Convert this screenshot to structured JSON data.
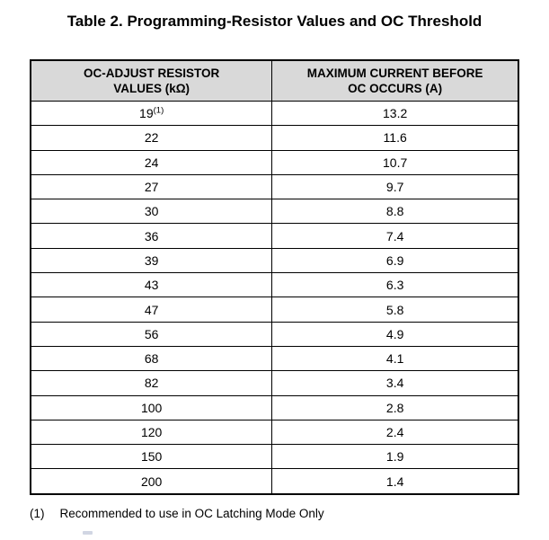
{
  "table": {
    "caption": "Table 2. Programming-Resistor Values and OC Threshold",
    "headers": {
      "col1": {
        "line1": "OC-ADJUST RESISTOR",
        "line2": "VALUES (kΩ)"
      },
      "col2": {
        "line1": "MAXIMUM CURRENT BEFORE",
        "line2": "OC OCCURS (A)"
      }
    },
    "rows": [
      {
        "resistor": "19",
        "sup": "(1)",
        "current": "13.2"
      },
      {
        "resistor": "22",
        "current": "11.6"
      },
      {
        "resistor": "24",
        "current": "10.7"
      },
      {
        "resistor": "27",
        "current": "9.7"
      },
      {
        "resistor": "30",
        "current": "8.8"
      },
      {
        "resistor": "36",
        "current": "7.4"
      },
      {
        "resistor": "39",
        "current": "6.9"
      },
      {
        "resistor": "43",
        "current": "6.3"
      },
      {
        "resistor": "47",
        "current": "5.8"
      },
      {
        "resistor": "56",
        "current": "4.9"
      },
      {
        "resistor": "68",
        "current": "4.1"
      },
      {
        "resistor": "82",
        "current": "3.4"
      },
      {
        "resistor": "100",
        "current": "2.8"
      },
      {
        "resistor": "120",
        "current": "2.4"
      },
      {
        "resistor": "150",
        "current": "1.9"
      },
      {
        "resistor": "200",
        "current": "1.4"
      }
    ]
  },
  "footnote": {
    "marker": "(1)",
    "text": "Recommended to use in OC Latching Mode Only"
  },
  "colors": {
    "header_bg": "#d9d9d9",
    "border": "#000000",
    "text": "#000000",
    "page_bg": "#ffffff"
  }
}
